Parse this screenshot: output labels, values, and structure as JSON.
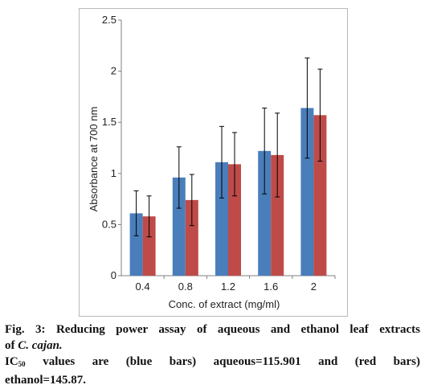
{
  "chart_data": {
    "type": "bar",
    "title": "",
    "xlabel": "Conc. of extract (mg/ml)",
    "ylabel": "Absorbance at 700 nm",
    "categories": [
      "0.4",
      "0.8",
      "1.2",
      "1.6",
      "2"
    ],
    "ylim": [
      0,
      2.5
    ],
    "yticks": [
      "0",
      "0.5",
      "1",
      "1.5",
      "2",
      "2.5"
    ],
    "grid": false,
    "legend": "none",
    "series": [
      {
        "color": "#4a7ebb",
        "values": [
          0.61,
          0.96,
          1.11,
          1.22,
          1.64
        ],
        "error": [
          0.22,
          0.3,
          0.35,
          0.42,
          0.49
        ]
      },
      {
        "color": "#be4b48",
        "values": [
          0.58,
          0.74,
          1.09,
          1.18,
          1.57
        ],
        "error": [
          0.2,
          0.25,
          0.31,
          0.41,
          0.45
        ]
      }
    ]
  },
  "caption": {
    "fig_label": "Fig. 3:",
    "line1_main": "Reducing power assay of aqueous and ethanol leaf extracts",
    "line2_prefix": "of",
    "line2_species": "C. cajan.",
    "ic": "IC",
    "ic_sub": "50",
    "line3_text": "values are (blue bars) aqueous=115.901 and (red bars)",
    "line4_text": "ethanol=145.87."
  }
}
